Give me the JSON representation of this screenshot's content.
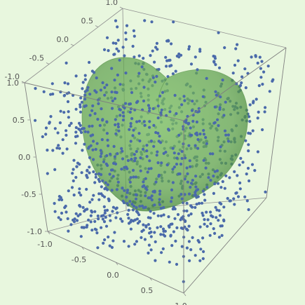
{
  "chart_data": {
    "type": "scatter",
    "dimensions": 3,
    "x_range": [
      -1.0,
      1.0
    ],
    "y_range": [
      -1.0,
      1.0
    ],
    "z_range": [
      -1.0,
      1.0
    ],
    "x_ticks": [
      "-1.0",
      "-0.5",
      "0.0",
      "0.5",
      "1.0"
    ],
    "y_ticks": [
      "-1.0",
      "-0.5",
      "0.0",
      "0.5",
      "1.0"
    ],
    "z_ticks": [
      "-1.0",
      "-0.5",
      "0.0",
      "0.5",
      "1.0"
    ],
    "points_count_estimate": 1200,
    "distribution": "uniform random in cube",
    "surface": "heart-shaped closed surface",
    "grid": false,
    "legend": "none",
    "colors": {
      "background": "#e8f7de",
      "points": "#4a6aaa",
      "surface": "#5fa04e",
      "box": "#8f8f8f"
    }
  }
}
